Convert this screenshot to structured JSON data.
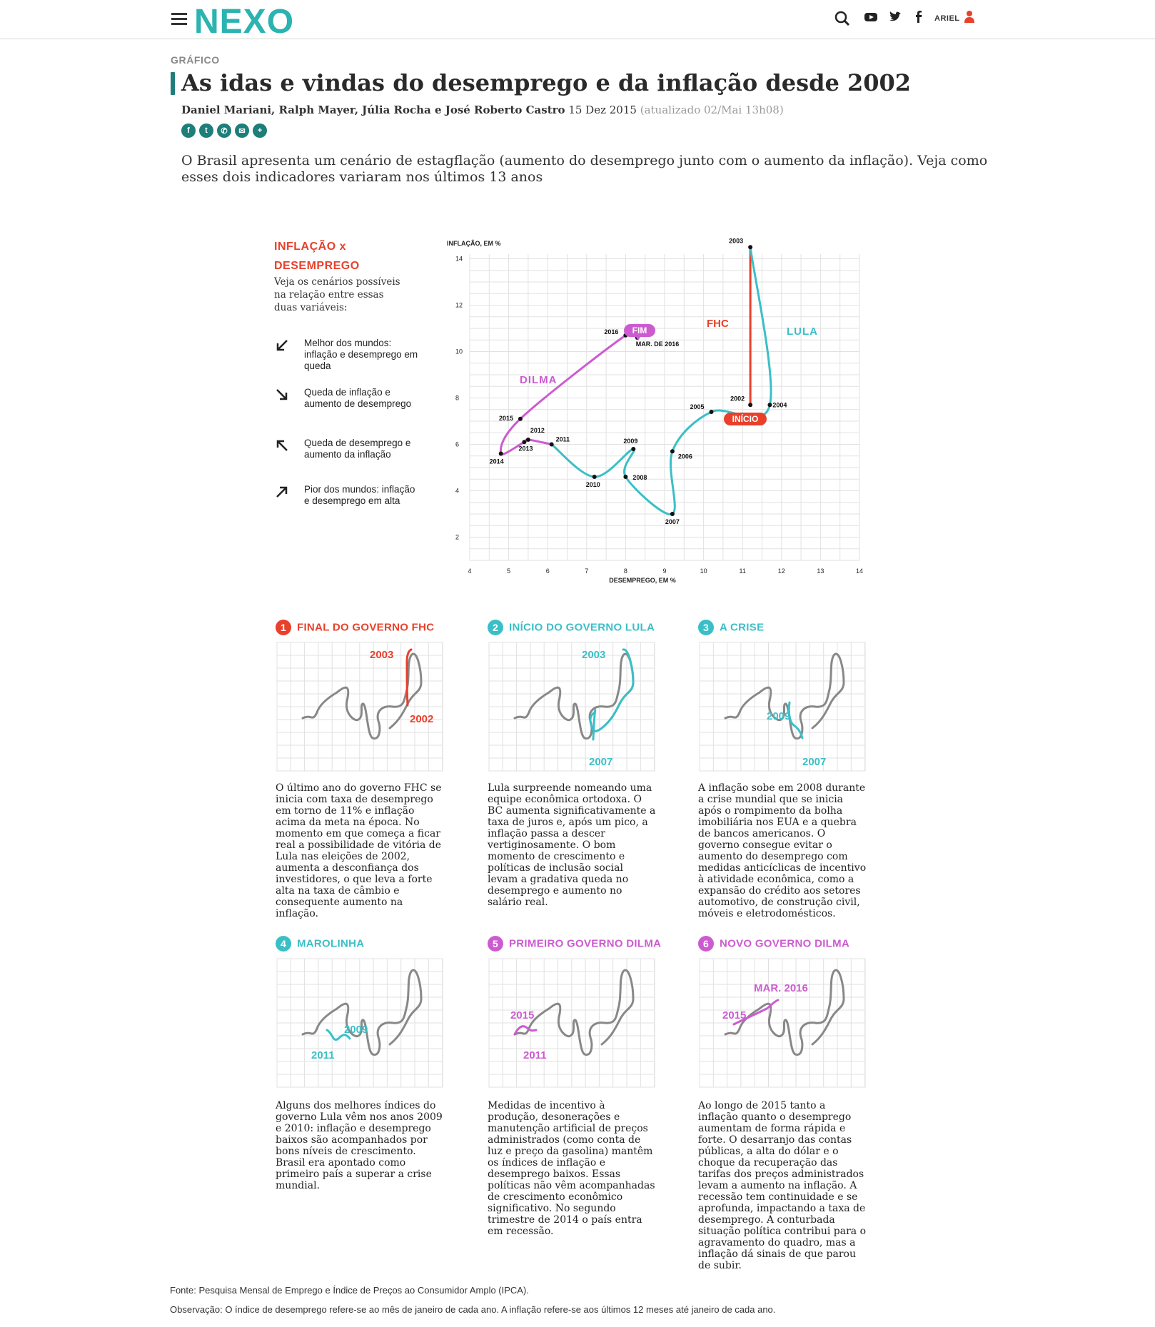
{
  "header": {
    "logo": "NEXO",
    "user_label": "ARIEL",
    "icons": [
      "menu-icon",
      "search-icon",
      "youtube-icon",
      "twitter-icon",
      "facebook-icon",
      "user-icon"
    ]
  },
  "article": {
    "kicker": "GRÁFICO",
    "title": "As idas e vindas do desemprego e da inflação desde 2002",
    "authors": "Daniel Mariani, Ralph Mayer, Júlia Rocha e José Roberto Castro",
    "date": "15 Dez 2015",
    "updated": "(atualizado 02/Mai 13h08)",
    "share_icons": [
      "facebook-icon",
      "twitter-icon",
      "whatsapp-icon",
      "email-icon",
      "plus-icon"
    ],
    "lede": "O Brasil apresenta um cenário de estagflação (aumento do desemprego junto com o aumento da inflação). Veja como esses dois indicadores variaram nos últimos 13 anos"
  },
  "legend": {
    "title": "INFLAÇÃO x DESEMPREGO",
    "subtitle": "Veja os cenários possíveis na relação entre essas duas variáveis:",
    "items": [
      {
        "icon": "arrow-down-left-icon",
        "text": "Melhor dos mundos: inflação e desemprego em queda"
      },
      {
        "icon": "arrow-down-right-icon",
        "text": "Queda de inflação e aumento de desemprego"
      },
      {
        "icon": "arrow-up-left-icon",
        "text": "Queda de desemprego e aumento da inflação"
      },
      {
        "icon": "arrow-up-right-icon",
        "text": "Pior dos mundos: inflação e desemprego em alta"
      }
    ]
  },
  "chart_data": {
    "type": "line",
    "xlabel": "DESEMPREGO, EM %",
    "ylabel": "INFLAÇÃO, EM %",
    "xlim": [
      4,
      14
    ],
    "ylim": [
      1,
      14.2
    ],
    "xticks": [
      4,
      5,
      6,
      7,
      8,
      9,
      10,
      11,
      12,
      13,
      14
    ],
    "yticks": [
      2,
      4,
      6,
      8,
      10,
      12,
      14
    ],
    "grid": true,
    "colors": {
      "FHC": "#e8402b",
      "LULA": "#3bbfc7",
      "DILMA": "#cc5bd0"
    },
    "points": [
      {
        "label": "2002",
        "x": 11.2,
        "y": 7.7
      },
      {
        "label": "2003",
        "x": 11.2,
        "y": 14.5
      },
      {
        "label": "2004",
        "x": 11.7,
        "y": 7.7
      },
      {
        "label": "2005",
        "x": 10.2,
        "y": 7.4
      },
      {
        "label": "2006",
        "x": 9.2,
        "y": 5.7
      },
      {
        "label": "2007",
        "x": 9.2,
        "y": 3.0
      },
      {
        "label": "2008",
        "x": 8.0,
        "y": 4.6
      },
      {
        "label": "2009",
        "x": 8.2,
        "y": 5.8
      },
      {
        "label": "2010",
        "x": 7.2,
        "y": 4.6
      },
      {
        "label": "2011",
        "x": 6.1,
        "y": 6.0
      },
      {
        "label": "2012",
        "x": 5.5,
        "y": 6.2
      },
      {
        "label": "2013",
        "x": 5.4,
        "y": 6.1
      },
      {
        "label": "2014",
        "x": 4.8,
        "y": 5.6
      },
      {
        "label": "2015",
        "x": 5.3,
        "y": 7.1
      },
      {
        "label": "2016",
        "x": 8.0,
        "y": 10.7
      },
      {
        "label": "MAR. DE 2016",
        "x": 8.3,
        "y": 10.6
      }
    ],
    "series": [
      {
        "name": "FHC",
        "labels": [
          "2002",
          "2003"
        ]
      },
      {
        "name": "LULA",
        "labels": [
          "2003",
          "2004",
          "2005",
          "2006",
          "2007",
          "2008",
          "2009",
          "2010",
          "2011"
        ]
      },
      {
        "name": "DILMA",
        "labels": [
          "2011",
          "2012",
          "2013",
          "2014",
          "2015",
          "2016",
          "MAR. DE 2016"
        ]
      }
    ],
    "annotations": {
      "start": "INÍCIO",
      "end": "FIM"
    }
  },
  "panels": [
    {
      "num": "1",
      "title": "FINAL DO GOVERNO FHC",
      "color": "#e8402b",
      "labels": [
        {
          "t": "2003"
        },
        {
          "t": "2002"
        }
      ],
      "text": "O último ano do governo FHC se inicia com taxa de desemprego em torno de 11% e inflação acima da meta na época. No momento em que começa a ficar real a possibilidade de vitória de Lula nas eleições de 2002, aumenta a desconfiança dos investidores, o que leva a forte alta na taxa de câmbio e consequente aumento na inflação."
    },
    {
      "num": "2",
      "title": "INÍCIO DO GOVERNO LULA",
      "color": "#3bbfc7",
      "labels": [
        {
          "t": "2003"
        },
        {
          "t": "2007"
        }
      ],
      "text": "Lula surpreende nomeando uma equipe econômica ortodoxa. O BC aumenta significativamente a taxa de juros e, após um pico, a inflação passa a descer vertiginosamente. O bom momento de crescimento e políticas de inclusão social levam a gradativa queda no desemprego e aumento no salário real."
    },
    {
      "num": "3",
      "title": "A CRISE",
      "color": "#3bbfc7",
      "labels": [
        {
          "t": "2009"
        },
        {
          "t": "2007"
        }
      ],
      "text": "A inflação sobe em 2008 durante a crise mundial que se inicia após o rompimento da bolha imobiliária nos EUA e a quebra de bancos americanos. O governo consegue evitar o aumento do desemprego com medidas anticíclicas de incentivo à atividade econômica, como a expansão do crédito aos setores automotivo, de construção civil, móveis e eletrodomésticos."
    },
    {
      "num": "4",
      "title": "MAROLINHA",
      "color": "#3bbfc7",
      "labels": [
        {
          "t": "2009"
        },
        {
          "t": "2011"
        }
      ],
      "text": "Alguns dos melhores índices do governo Lula vêm nos anos 2009 e 2010: inflação e desemprego baixos são acompanhados por bons níveis de crescimento. Brasil era apontado como primeiro país a superar a crise mundial."
    },
    {
      "num": "5",
      "title": "PRIMEIRO GOVERNO DILMA",
      "color": "#cc5bd0",
      "labels": [
        {
          "t": "2015"
        },
        {
          "t": "2011"
        }
      ],
      "text": "Medidas de incentivo à produção, desonerações e manutenção artificial de preços administrados (como conta de luz e preço da gasolina) mantêm os índices de inflação e desemprego baixos. Essas políticas não vêm acompanhadas de crescimento econômico significativo. No segundo trimestre de 2014 o país entra em recessão."
    },
    {
      "num": "6",
      "title": "NOVO GOVERNO DILMA",
      "color": "#cc5bd0",
      "labels": [
        {
          "t": "MAR. 2016"
        },
        {
          "t": "2015"
        }
      ],
      "text": "Ao longo de 2015 tanto a inflação quanto o desemprego aumentam de forma rápida e forte. O desarranjo das contas públicas, a alta do dólar e o choque da recuperação das tarifas dos preços administrados levam a aumento na inflação. A recessão tem continuidade e se aprofunda, impactando a taxa de desemprego. A conturbada situação política contribui para o agravamento do quadro, mas a inflação dá sinais de que parou de subir."
    }
  ],
  "footer": {
    "source": "Fonte: Pesquisa Mensal de Emprego e Índice de Preços ao Consumidor Amplo (IPCA).",
    "note": "Observação: O índice de desemprego refere-se ao mês de janeiro de cada ano. A inflação refere-se aos últimos 12 meses até janeiro de cada ano."
  }
}
